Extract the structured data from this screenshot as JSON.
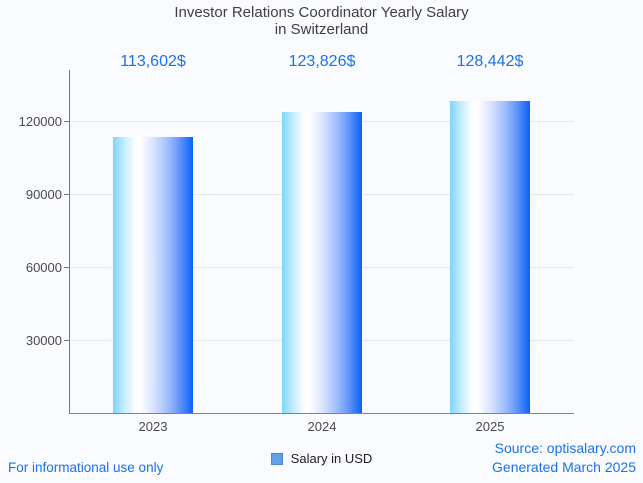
{
  "title": {
    "line1": "Investor Relations Coordinator Yearly Salary",
    "line2": "in Switzerland"
  },
  "chart_data": {
    "type": "bar",
    "title": "Investor Relations Coordinator Yearly Salary in Switzerland",
    "categories": [
      "2023",
      "2024",
      "2025"
    ],
    "series": [
      {
        "name": "Salary in USD",
        "values": [
          113602,
          123826,
          128442
        ]
      }
    ],
    "annotations": [
      "113,602$",
      "123,826$",
      "128,442$"
    ],
    "ylim": [
      0,
      141000
    ],
    "yticks": [
      30000,
      60000,
      90000,
      120000
    ],
    "ytick_labels": [
      "30000",
      "60000",
      "90000",
      "120000"
    ],
    "grid": true,
    "legend_position": "bottom"
  },
  "legend": {
    "label": "Salary in USD",
    "swatch_fill": "#64a0e6",
    "swatch_border": "#4c86cc"
  },
  "footer": {
    "left": "For informational use only",
    "source": "Source: optisalary.com",
    "generated": "Generated March 2025"
  },
  "colors": {
    "annotation": "#1a73e8",
    "title": "#404040",
    "axis_label": "#4a4a4a",
    "background": "#fafbfe",
    "gridline": "#e4e7ec",
    "bar_gradient_stops": [
      "#7fd4fc 0%",
      "#cfeffe 16%",
      "#ffffff 29%",
      "#ffffff 34%",
      "#dbe5fe 50%",
      "#a9c4fd 66%",
      "#6d9cfa 81%",
      "#0a63f6 100%"
    ]
  }
}
